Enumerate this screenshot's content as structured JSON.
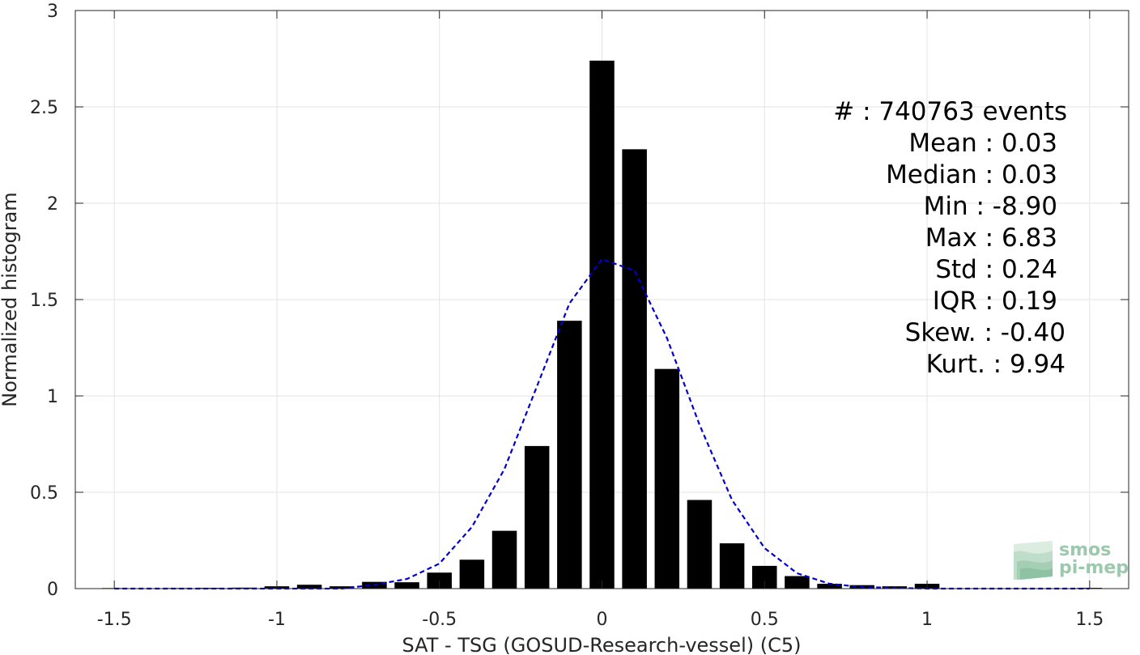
{
  "chart_data": {
    "type": "bar",
    "xlabel": "SAT - TSG (GOSUD-Research-vessel) (C5)",
    "ylabel": "Normalized histogram",
    "xlim": [
      -1.62,
      1.62
    ],
    "ylim": [
      0,
      3
    ],
    "grid": true,
    "bar_color": "#000000",
    "x_ticks": [
      -1.5,
      -1,
      -0.5,
      0,
      0.5,
      1,
      1.5
    ],
    "x_tick_labels": [
      "-1.5",
      "-1",
      "-0.5",
      "0",
      "0.5",
      "1",
      "1.5"
    ],
    "y_ticks": [
      0,
      0.5,
      1,
      1.5,
      2,
      2.5,
      3
    ],
    "y_tick_labels": [
      "0",
      "0.5",
      "1",
      "1.5",
      "2",
      "2.5",
      "3"
    ],
    "bin_width": 0.1,
    "bars": {
      "x": [
        -1.5,
        -1.3,
        -1.2,
        -1.1,
        -1.0,
        -0.9,
        -0.8,
        -0.7,
        -0.6,
        -0.5,
        -0.4,
        -0.3,
        -0.2,
        -0.1,
        0.0,
        0.1,
        0.2,
        0.3,
        0.4,
        0.5,
        0.6,
        0.7,
        0.8,
        0.9,
        1.0,
        1.5
      ],
      "values": [
        0.003,
        0.003,
        0.004,
        0.005,
        0.012,
        0.02,
        0.012,
        0.035,
        0.033,
        0.083,
        0.15,
        0.3,
        0.74,
        1.39,
        2.74,
        2.28,
        1.14,
        0.46,
        0.235,
        0.118,
        0.065,
        0.025,
        0.018,
        0.012,
        0.025,
        0.004
      ]
    },
    "fit_curve": {
      "color": "#0000cc",
      "style": "dashed",
      "x": [
        -1.5,
        -1.2,
        -1.0,
        -0.8,
        -0.7,
        -0.6,
        -0.5,
        -0.4,
        -0.3,
        -0.2,
        -0.1,
        0.0,
        0.1,
        0.2,
        0.3,
        0.4,
        0.5,
        0.6,
        0.7,
        0.8,
        1.0,
        1.2,
        1.5
      ],
      "y": [
        0.0,
        0.0,
        0.0,
        0.0,
        0.02,
        0.05,
        0.13,
        0.32,
        0.62,
        1.05,
        1.48,
        1.71,
        1.65,
        1.3,
        0.85,
        0.46,
        0.21,
        0.08,
        0.025,
        0.008,
        0.0,
        0.0,
        0.0
      ]
    },
    "annotations": [
      "#  : 740763 events",
      "Mean : 0.03",
      "Median : 0.03",
      "Min : -8.90",
      "Max : 6.83",
      "Std : 0.24",
      "IQR : 0.19",
      "Skew. : -0.40",
      "Kurt. : 9.94"
    ]
  },
  "logo": {
    "line1": "smos",
    "line2": "pi-mep",
    "color": "#9cc9ae"
  }
}
